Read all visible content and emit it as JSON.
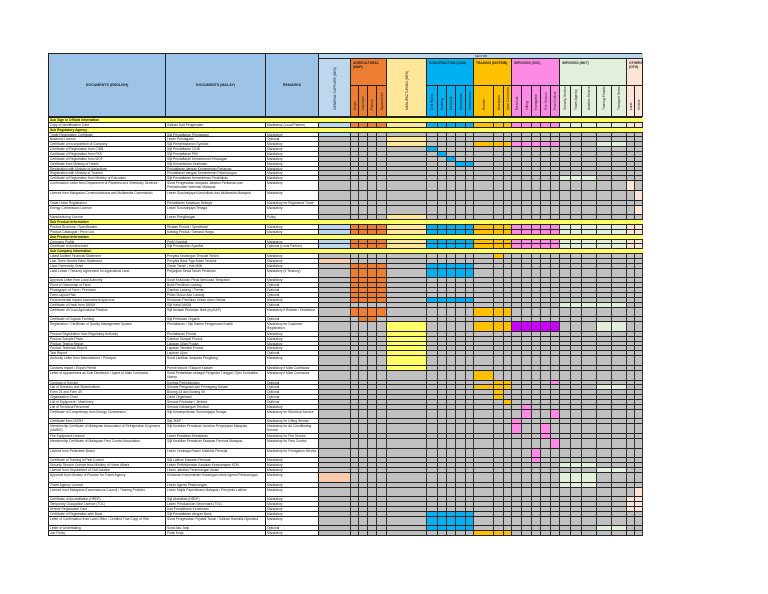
{
  "header": {
    "documents_en": "DOCUMENTS (ENGLISH)",
    "documents_ms": "DOCUMENTS (MALAY)",
    "remarks": "REMARKS",
    "sector": "SECTOR"
  },
  "colors": {
    "header_blue": "#9dc3e6",
    "empty_cell": "#c0c0c0",
    "section_row": "#ffff66",
    "purple": "#cc00ff",
    "salmon": "#f8cbad",
    "bright_yellow": "#ffff66"
  },
  "groups": [
    {
      "name": "GENERAL SUPPLIER (GEN)",
      "color": "#bdd7ee",
      "subs": []
    },
    {
      "name": "AGRICULTURAL (MAP)",
      "color": "#ed7d31",
      "subs": [
        "Crops",
        "Livestock",
        "Fishery",
        "Aquaculture"
      ]
    },
    {
      "name": "MANUFACTURING (MFG)",
      "color": "#ffe699",
      "subs": []
    },
    {
      "name": "CONSTRUCTION (CON)",
      "color": "#00b0f0",
      "subs": [
        "Civil Works",
        "Building",
        "Electrical",
        "Mechanical",
        "Maintenance"
      ]
    },
    {
      "name": "TRADING (DISTRIB)",
      "color": "#ffc000",
      "subs": [
        "Retailer",
        "Distributor",
        "Main Contractor"
      ]
    },
    {
      "name": "SERVICES (SVC)",
      "color": "#ff8ae6",
      "subs": [
        "Electrical",
        "Lifting",
        "Fumigation",
        "Fire Service",
        "Pest Control"
      ]
    },
    {
      "name": "SERVICES (MKT)",
      "color": "#e2efda",
      "subs": [
        "Security Service",
        "Travel Agency",
        "Aviation Services",
        "Training Provider",
        "Transport Services"
      ]
    },
    {
      "name": "OTHERS (OTH)",
      "color": "#fce4d6",
      "subs": [
        "Land",
        "Vehicle"
      ]
    }
  ],
  "rows": [
    {
      "type": "section",
      "en": "Sub Sign In Official Information"
    },
    {
      "en": "Copy of Identification Card",
      "ms": "Salinan Kad Pengenalan",
      "remarks": "Mandatory (Local Partner)",
      "on": "all"
    },
    {
      "type": "section",
      "en": "Sub Regulatory Agency"
    },
    {
      "en": "Trade Registration Certificate",
      "ms": "Sijil Pendaftaran Perniagaan",
      "remarks": "Mandatory",
      "on": [
        0
      ]
    },
    {
      "en": "Business Licence",
      "ms": "Lesen Perniagaan",
      "remarks": "Optional",
      "on": [
        5
      ]
    },
    {
      "en": "Certificate of Incorporation of Company",
      "ms": "Sijil Pemerbadanan Syarikat",
      "remarks": "Mandatory",
      "on": [
        5,
        11,
        12,
        13,
        14,
        15,
        16,
        17,
        18,
        22,
        23
      ]
    },
    {
      "en": "Certificate of Registration from CIDB",
      "ms": "Sijil Pendaftaran CIDB",
      "remarks": "Mandatory",
      "on": [
        6
      ]
    },
    {
      "en": "Certificate of Registration from PKK",
      "ms": "Sijil Pendaftaran PKK",
      "remarks": "Mandatory",
      "on": [
        7
      ]
    },
    {
      "en": "Certificate of Registration from MOF",
      "ms": "Sijil Pendaftaran Kementerian Kewangan",
      "remarks": "Mandatory",
      "on": [
        8
      ]
    },
    {
      "en": "Certificate from Ministry of Health",
      "ms": "Sijil Kementerian Kesihatan",
      "remarks": "Mandatory",
      "on": [
        9,
        10
      ]
    },
    {
      "en": "Registration with Ministry of Agriculture",
      "ms": "Pendaftaran dengan Kementerian Pertanian",
      "remarks": "Mandatory",
      "on": []
    },
    {
      "en": "Registration with Ministry of Tourism",
      "ms": "Pendaftaran dengan Kementerian Pelancongan",
      "remarks": "Mandatory",
      "on": []
    },
    {
      "en": "Certificate of Registration from Ministry of Education",
      "ms": "Sijil Pendaftaran Kementerian Pendidikan",
      "remarks": "Mandatory",
      "on": [
        19,
        20,
        21
      ]
    },
    {
      "en": "Confirmation Letter from Department of Fisheries and Veterinary Services",
      "ms": "Surat Pengesahan daripada Jabatan Perikanan dan Perkhidmatan Veterinar Malaysia",
      "remarks": "Mandatory",
      "on": [
        24
      ],
      "tall": true
    },
    {
      "en": "Licence from Malaysian Communications and Multimedia Commission",
      "ms": "Lesen Suruhanjaya Komunikasi dan Multimedia Malaysia",
      "remarks": "Mandatory",
      "on": [
        25
      ],
      "tall": true
    },
    {
      "en": "Trade Union Registration",
      "ms": "Pendaftaran Kesatuan Sekerja",
      "remarks": "Mandatory for Registered Trade Union",
      "on": []
    },
    {
      "en": "Energy Commission Licence",
      "ms": "Lesen Suruhanjaya Tenaga",
      "remarks": "Mandatory",
      "on": [
        25
      ],
      "tall": true
    },
    {
      "en": "Manufacturing Licence",
      "ms": "Lesen Pengilangan",
      "remarks": "Policy",
      "on": [
        5
      ]
    },
    {
      "type": "section",
      "en": "Sub Product Information"
    },
    {
      "en": "Product Brochure / Specification",
      "ms": "Risalah Produk / Spesifikasi",
      "remarks": "Mandatory",
      "on": "all"
    },
    {
      "en": "Product Catalogue / Price List",
      "ms": "Katalog Produk / Senarai Harga",
      "remarks": "Mandatory",
      "on": "all"
    },
    {
      "type": "section",
      "en": "Sub Product Information"
    },
    {
      "en": "Company Profile",
      "ms": "Profil Syarikat",
      "remarks": "Mandatory",
      "on": "all"
    },
    {
      "en": "Certificate of Achievement",
      "ms": "Sijil Pencapaian Syarikat",
      "remarks": "Optional (Local Partner)",
      "on": "all"
    },
    {
      "type": "section",
      "en": "Sub Company Information"
    },
    {
      "en": "Latest Audited Financial Statement",
      "ms": "Penyata Kewangan Teraudit Terkini",
      "remarks": "Mandatory",
      "on": [
        12
      ]
    },
    {
      "en": "Last Three Months Bank Statement",
      "ms": "Penyata Bank Tiga Bulan Terakhir",
      "remarks": "Mandatory",
      "alt": [
        0
      ]
    },
    {
      "en": "Land Ownership Grant",
      "ms": "Geran Tanah / Hak Milik",
      "remarks": "Mandatory",
      "on": [
        1,
        2,
        3,
        4,
        6,
        7,
        8,
        9,
        10
      ]
    },
    {
      "en": "Land Lease / Tenancy Agreement for Agricultural Land",
      "ms": "Perjanjian Sewa Tanah Pertanian",
      "remarks": "Mandatory (if Tenancy)",
      "on": [
        1,
        2,
        3,
        4,
        6,
        7,
        8,
        9,
        10
      ],
      "tall": true
    },
    {
      "en": "Approval Letter from Local Authority",
      "ms": "Surat Kelulusan Pihak Berkuasa Tempatan",
      "remarks": "Mandatory",
      "on": [
        1,
        2,
        3,
        4
      ]
    },
    {
      "en": "Proof of Ownership of Farm",
      "ms": "Bukti Pemilikan Ladang",
      "remarks": "Optional",
      "on": [
        1,
        2,
        3,
        4
      ]
    },
    {
      "en": "Photograph of Farm / Premises",
      "ms": "Gambar Ladang / Premis",
      "remarks": "Optional",
      "on": [
        1,
        2,
        3,
        4
      ]
    },
    {
      "en": "Farm Layout Plan",
      "ms": "Pelan Susun Atur Ladang",
      "remarks": "Optional",
      "on": [
        1,
        2,
        3,
        4
      ]
    },
    {
      "en": "Environmental Impact Assessment Approval",
      "ms": "Kelulusan Penilaian Kesan Alam Sekitar",
      "remarks": "Mandatory",
      "on": [
        1,
        2,
        3,
        4,
        6,
        7,
        8,
        9,
        10
      ]
    },
    {
      "en": "Certificate of Halal from JAKIM",
      "ms": "Sijil Halal JAKIM",
      "remarks": "Optional",
      "on": [
        19,
        20,
        21,
        22,
        23
      ]
    },
    {
      "en": "Certificate of Good Agricultural Practice",
      "ms": "Sijil Amalan Pertanian Baik (myGAP)",
      "remarks": "Mandatory if Retailer / Distributor",
      "on": [
        1,
        2,
        3,
        4,
        11,
        12,
        13
      ],
      "tall": true
    },
    {
      "en": "Certificate of Organic Farming",
      "ms": "Sijil Pertanian Organik",
      "remarks": "Optional",
      "on": [
        2,
        3
      ]
    },
    {
      "en": "Registration / Certificate of Quality Management System",
      "ms": "Pendaftaran / Sijil Sistem Pengurusan Kualiti",
      "remarks": "Mandatory for Customer Registration",
      "on": [
        11,
        12,
        13,
        22,
        23
      ],
      "alt": [
        5,
        14,
        15,
        16,
        17,
        18
      ],
      "tall": true
    },
    {
      "en": "Product Registration from Regulatory Authority",
      "ms": "Pendaftaran Produk",
      "remarks": "Mandatory",
      "alt": [
        5
      ]
    },
    {
      "en": "Product Sample Photo",
      "ms": "Gambar Sampel Produk",
      "remarks": "Mandatory",
      "alt": [
        5
      ]
    },
    {
      "en": "Product Testing Report",
      "ms": "Laporan Ujian Produk",
      "remarks": "Mandatory",
      "alt": [
        5
      ]
    },
    {
      "en": "Product Technical Report",
      "ms": "Laporan Teknikal Produk",
      "remarks": "Mandatory",
      "alt": [
        5
      ]
    },
    {
      "en": "Test Report",
      "ms": "Laporan Ujian",
      "remarks": "Optional",
      "alt": [
        5
      ]
    },
    {
      "en": "Authority Letter from Manufacturer / Principal",
      "ms": "Surat Lantikan daripada Pengilang",
      "remarks": "Mandatory",
      "alt": [
        5
      ],
      "tall": true
    },
    {
      "en": "Customs Import / Export Permit",
      "ms": "Permit Import / Eksport Kastam",
      "remarks": "Mandatory if Main Contractor",
      "alt": [
        5
      ]
    },
    {
      "en": "Letter of Appointment as Sole Distributor / Agent of Main Contractor",
      "ms": "Surat Perlantikan sebagai Pengedar Tunggal / Ejen Kontraktor Utama",
      "remarks": "Mandatory if Main Contractor",
      "on": [
        11
      ],
      "tall": true
    },
    {
      "en": "Contract of Service",
      "ms": "Kontrak Perkhidmatan",
      "remarks": "Optional",
      "on": [
        12,
        13,
        18
      ]
    },
    {
      "en": "List of Directors and Shareholders",
      "ms": "Senarai Pengarah dan Pemegang Saham",
      "remarks": "Optional",
      "on": [
        11,
        12,
        13,
        22,
        23
      ]
    },
    {
      "en": "Form 24 and Form 49",
      "ms": "Borang 24 dan Borang 49",
      "remarks": "Optional",
      "on": [
        12
      ]
    },
    {
      "en": "Organisation Chart",
      "ms": "Carta Organisasi",
      "remarks": "Optional",
      "on": [
        12
      ]
    },
    {
      "en": "List of Equipment / Machinery",
      "ms": "Senarai Peralatan / Jentera",
      "remarks": "Optional",
      "on": [
        13
      ]
    },
    {
      "en": "List of Technical Personnel",
      "ms": "Senarai Kakitangan Teknikal",
      "remarks": "Mandatory",
      "on": [
        15
      ]
    },
    {
      "en": "Certificate of Competency from Energy Commission",
      "ms": "Sijil Kekompetenan Suruhanjaya Tenaga",
      "remarks": "Mandatory for Electrical Service",
      "on": [
        15,
        18
      ],
      "tall": true
    },
    {
      "en": "Certificate from DOSH",
      "ms": "Sijil JKKP",
      "remarks": "Mandatory for Lifting Service",
      "on": [
        14
      ]
    },
    {
      "en": "Membership Certificate of Malaysian Association of Refrigeration Engineers (MARIE)",
      "ms": "Sijil Keahlian Persatuan Jurutera Penyejukan Malaysia",
      "remarks": "Mandatory for Air Conditioning Service",
      "on": [
        14,
        17
      ],
      "tall": true
    },
    {
      "en": "Fire Equipment Licence",
      "ms": "Lesen Peralatan Kebakaran",
      "remarks": "Mandatory for Fire Service",
      "on": [
        17
      ]
    },
    {
      "en": "Membership Certificate of Malaysian Pest Control Association",
      "ms": "Sijil Keahlian Persatuan Kawalan Perosak Malaysia",
      "remarks": "Mandatory for Pest Control",
      "on": [
        18
      ],
      "tall": true
    },
    {
      "en": "Licence from Pesticides Board",
      "ms": "Lesen Lembaga Racun Makhluk Perosak",
      "remarks": "Mandatory for Fumigation Service",
      "on": [
        16
      ],
      "tall": true
    },
    {
      "en": "Certificate of Training in Pest Control",
      "ms": "Sijil Latihan Kawalan Perosak",
      "remarks": "Mandatory",
      "on": [
        16
      ]
    },
    {
      "en": "Security Service Licence from Ministry of Home Affairs",
      "ms": "Lesen Perkhidmatan Kawalan Keselamatan KDN",
      "remarks": "Mandatory",
      "on": [
        19,
        20,
        21
      ]
    },
    {
      "en": "Licence from Department of Civil Aviation",
      "ms": "Lesen Jabatan Penerbangan Awam",
      "remarks": "Mandatory",
      "on": [
        22,
        23
      ]
    },
    {
      "en": "Approval from Ministry of Finance for Travel Agency",
      "ms": "Kelulusan Kementerian Kewangan untuk Agensi Pelancongan",
      "remarks": "Mandatory",
      "on": [
        19,
        20,
        21
      ],
      "alt": [
        0
      ],
      "tall": true
    },
    {
      "en": "Travel Agency Licence",
      "ms": "Lesen Agensi Pelancongan",
      "remarks": "Mandatory",
      "on": [
        19,
        20,
        21
      ]
    },
    {
      "en": "Licence from Malaysian Examinations Council / Training Provider",
      "ms": "Lesen Majlis Peperiksaan Malaysia / Penyedia Latihan",
      "remarks": "Mandatory",
      "on": [
        25
      ],
      "tall": true
    },
    {
      "en": "Certificate of Accreditation (HRDF)",
      "ms": "Sijil Akreditasi (HRDF)",
      "remarks": "Mandatory",
      "on": [
        24,
        25
      ]
    },
    {
      "en": "Temporary Occupation Licence (TOL)",
      "ms": "Lesen Pendudukan Sementara (TOL)",
      "remarks": "Mandatory",
      "on": [
        24,
        25
      ]
    },
    {
      "en": "Vehicle Registration Card",
      "ms": "Kad Pendaftaran Kenderaan",
      "remarks": "Mandatory",
      "on": [
        24,
        25
      ]
    },
    {
      "en": "Certificate of Registration with Bank",
      "ms": "Sijil Pendaftaran dengan Bank",
      "remarks": "Mandatory",
      "on": [
        6,
        7,
        8,
        9,
        10
      ]
    },
    {
      "en": "Letter of Confirmation from Land Office / Certified True Copy of Title",
      "ms": "Surat Pengesahan Pejabat Tanah / Salinan Hakmilik Diperakui",
      "remarks": "Mandatory",
      "on": [
        6,
        7,
        8,
        9,
        10
      ],
      "tall": true
    },
    {
      "en": "Letter of Undertaking",
      "ms": "Surat Aku Janji",
      "remarks": "Optional",
      "on": [
        6,
        7,
        8,
        9,
        10,
        22,
        23
      ]
    },
    {
      "en": "Job Policy",
      "ms": "Polisi Kerja",
      "remarks": "Mandatory",
      "on": [
        11,
        12,
        13
      ]
    }
  ]
}
